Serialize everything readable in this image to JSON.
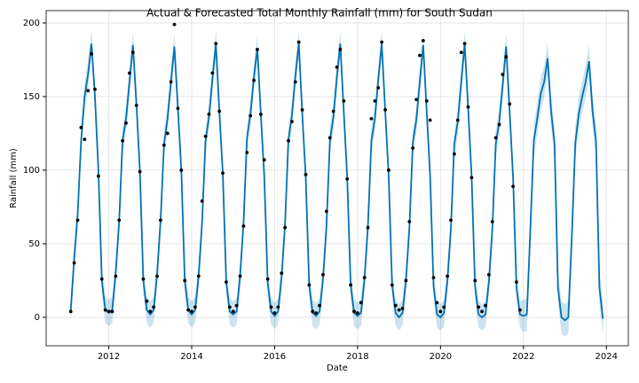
{
  "chart_data": {
    "type": "line",
    "title": "Actual & Forecasted Total Monthly Rainfall (mm) for South Sudan",
    "x_label": "Date",
    "y_label": "Rainfall (mm)",
    "xlim": [
      2010.49,
      2024.53
    ],
    "ylim": [
      -19.3,
      208.4
    ],
    "xticks": [
      2012,
      2014,
      2016,
      2018,
      2020,
      2022,
      2024
    ],
    "yticks": [
      0,
      50,
      100,
      150,
      200
    ],
    "grid": true,
    "x": [
      2011.083,
      2011.167,
      2011.25,
      2011.333,
      2011.417,
      2011.5,
      2011.583,
      2011.667,
      2011.75,
      2011.833,
      2011.917,
      2012,
      2012.083,
      2012.167,
      2012.25,
      2012.333,
      2012.417,
      2012.5,
      2012.583,
      2012.667,
      2012.75,
      2012.833,
      2012.917,
      2013,
      2013.083,
      2013.167,
      2013.25,
      2013.333,
      2013.417,
      2013.5,
      2013.583,
      2013.667,
      2013.75,
      2013.833,
      2013.917,
      2014,
      2014.083,
      2014.167,
      2014.25,
      2014.333,
      2014.417,
      2014.5,
      2014.583,
      2014.667,
      2014.75,
      2014.833,
      2014.917,
      2015,
      2015.083,
      2015.167,
      2015.25,
      2015.333,
      2015.417,
      2015.5,
      2015.583,
      2015.667,
      2015.75,
      2015.833,
      2015.917,
      2016,
      2016.083,
      2016.167,
      2016.25,
      2016.333,
      2016.417,
      2016.5,
      2016.583,
      2016.667,
      2016.75,
      2016.833,
      2016.917,
      2017,
      2017.083,
      2017.167,
      2017.25,
      2017.333,
      2017.417,
      2017.5,
      2017.583,
      2017.667,
      2017.75,
      2017.833,
      2017.917,
      2018,
      2018.083,
      2018.167,
      2018.25,
      2018.333,
      2018.417,
      2018.5,
      2018.583,
      2018.667,
      2018.75,
      2018.833,
      2018.917,
      2019,
      2019.083,
      2019.167,
      2019.25,
      2019.333,
      2019.417,
      2019.5,
      2019.583,
      2019.667,
      2019.75,
      2019.833,
      2019.917,
      2020,
      2020.083,
      2020.167,
      2020.25,
      2020.333,
      2020.417,
      2020.5,
      2020.583,
      2020.667,
      2020.75,
      2020.833,
      2020.917,
      2021,
      2021.083,
      2021.167,
      2021.25,
      2021.333,
      2021.417,
      2021.5,
      2021.583,
      2021.667,
      2021.75,
      2021.833,
      2021.917,
      2022,
      2022.083,
      2022.167,
      2022.25,
      2022.333,
      2022.417,
      2022.5,
      2022.583,
      2022.667,
      2022.75,
      2022.833,
      2022.917,
      2023,
      2023.083,
      2023.167,
      2023.25,
      2023.333,
      2023.417,
      2023.5,
      2023.583,
      2023.667,
      2023.75,
      2023.833,
      2023.917
    ],
    "series": [
      {
        "style": "points",
        "color": "#000000",
        "values": [
          4,
          37,
          66,
          129,
          121,
          154,
          179,
          155,
          96,
          26,
          5,
          4,
          4,
          28,
          66,
          120,
          132,
          166,
          180,
          144,
          99,
          26,
          11,
          4,
          7,
          28,
          66,
          117,
          125,
          160,
          199,
          142,
          100,
          25,
          5,
          4,
          7,
          28,
          79,
          123,
          138,
          166,
          186,
          140,
          98,
          24,
          7,
          4,
          8,
          28,
          62,
          112,
          137,
          161,
          182,
          138,
          107,
          26,
          7,
          3,
          7,
          30,
          61,
          120,
          133,
          160,
          187,
          141,
          97,
          22,
          4,
          3,
          8,
          29,
          72,
          122,
          140,
          170,
          182,
          147,
          94,
          22,
          4,
          3,
          10,
          27,
          61,
          135,
          147,
          156,
          187,
          141,
          100,
          22,
          8,
          5,
          6,
          25,
          65,
          115,
          148,
          178,
          188,
          147,
          134,
          27,
          10,
          4,
          7,
          28,
          66,
          111,
          134,
          180,
          186,
          143,
          95,
          25,
          7,
          4,
          8,
          29,
          65,
          122,
          131,
          165,
          177,
          145,
          89,
          24,
          5,
          null,
          null,
          null,
          null,
          null,
          null,
          null,
          null,
          null,
          null,
          null,
          null,
          null,
          null,
          null,
          null,
          null,
          null,
          null,
          null,
          null,
          null,
          null,
          null
        ]
      },
      {
        "style": "line",
        "color": "#0072b2",
        "band_color": "#0072b2",
        "values": [
          5,
          40,
          70,
          120,
          150,
          165,
          186,
          150,
          100,
          25,
          5,
          3,
          5,
          30,
          65,
          120,
          135,
          160,
          185,
          145,
          100,
          25,
          5,
          2,
          5,
          30,
          66,
          118,
          135,
          160,
          184,
          142,
          100,
          25,
          5,
          2,
          5,
          28,
          64,
          120,
          136,
          162,
          186,
          140,
          98,
          24,
          4,
          2,
          4,
          28,
          64,
          122,
          138,
          163,
          183,
          138,
          96,
          23,
          4,
          1,
          4,
          27,
          63,
          121,
          137,
          164,
          186,
          138,
          95,
          22,
          3,
          1,
          4,
          26,
          62,
          120,
          136,
          163,
          186,
          140,
          95,
          22,
          3,
          1,
          3,
          26,
          62,
          120,
          135,
          162,
          186,
          140,
          96,
          22,
          3,
          0,
          3,
          25,
          61,
          119,
          134,
          160,
          185,
          140,
          96,
          21,
          2,
          0,
          3,
          25,
          60,
          118,
          133,
          160,
          186,
          142,
          96,
          21,
          2,
          0,
          2,
          24,
          60,
          118,
          133,
          158,
          184,
          140,
          95,
          20,
          2,
          1,
          2,
          60,
          120,
          135,
          152,
          160,
          176,
          140,
          118,
          20,
          0,
          -2,
          0,
          55,
          118,
          138,
          150,
          160,
          174,
          140,
          120,
          20,
          -1
        ],
        "upper": [
          14,
          49,
          79,
          129,
          159,
          174,
          195,
          159,
          109,
          34,
          14,
          12,
          14,
          39,
          74,
          129,
          144,
          169,
          194,
          154,
          109,
          34,
          14,
          11,
          14,
          39,
          75,
          127,
          144,
          169,
          193,
          151,
          109,
          34,
          14,
          11,
          14,
          37,
          73,
          129,
          145,
          171,
          195,
          149,
          107,
          33,
          13,
          11,
          13,
          37,
          73,
          131,
          147,
          172,
          192,
          147,
          105,
          32,
          13,
          10,
          13,
          36,
          72,
          130,
          146,
          173,
          195,
          147,
          104,
          31,
          12,
          10,
          13,
          35,
          71,
          129,
          145,
          172,
          195,
          149,
          104,
          31,
          12,
          10,
          12,
          35,
          71,
          129,
          144,
          171,
          195,
          149,
          105,
          31,
          12,
          9,
          12,
          34,
          70,
          128,
          143,
          169,
          194,
          149,
          105,
          30,
          11,
          9,
          12,
          34,
          69,
          127,
          142,
          169,
          195,
          151,
          105,
          30,
          11,
          9,
          11,
          33,
          69,
          127,
          142,
          167,
          193,
          149,
          104,
          29,
          11,
          12,
          13,
          71,
          131,
          146,
          163,
          171,
          187,
          151,
          129,
          31,
          11,
          9,
          11,
          66,
          129,
          149,
          161,
          171,
          185,
          151,
          131,
          31,
          10
        ],
        "lower": [
          -4,
          31,
          61,
          111,
          141,
          156,
          177,
          141,
          91,
          16,
          -4,
          -6,
          -4,
          21,
          56,
          111,
          126,
          151,
          176,
          136,
          91,
          16,
          -4,
          -7,
          -4,
          21,
          57,
          109,
          126,
          151,
          175,
          133,
          91,
          16,
          -4,
          -7,
          -4,
          19,
          55,
          111,
          127,
          153,
          177,
          131,
          89,
          15,
          -5,
          -7,
          -5,
          19,
          55,
          113,
          129,
          154,
          174,
          129,
          87,
          14,
          -5,
          -8,
          -5,
          18,
          54,
          112,
          128,
          155,
          177,
          129,
          86,
          13,
          -6,
          -8,
          -5,
          17,
          53,
          111,
          127,
          154,
          177,
          131,
          86,
          13,
          -6,
          -8,
          -6,
          17,
          53,
          111,
          126,
          153,
          177,
          131,
          87,
          13,
          -6,
          -9,
          -6,
          16,
          52,
          110,
          125,
          151,
          176,
          131,
          87,
          12,
          -7,
          -9,
          -6,
          16,
          51,
          109,
          124,
          151,
          177,
          133,
          87,
          12,
          -7,
          -9,
          -7,
          15,
          51,
          109,
          124,
          149,
          175,
          131,
          86,
          11,
          -7,
          -10,
          -9,
          49,
          109,
          124,
          141,
          149,
          165,
          129,
          107,
          9,
          -11,
          -13,
          -11,
          44,
          107,
          127,
          139,
          149,
          163,
          129,
          109,
          9,
          -12
        ]
      }
    ]
  }
}
